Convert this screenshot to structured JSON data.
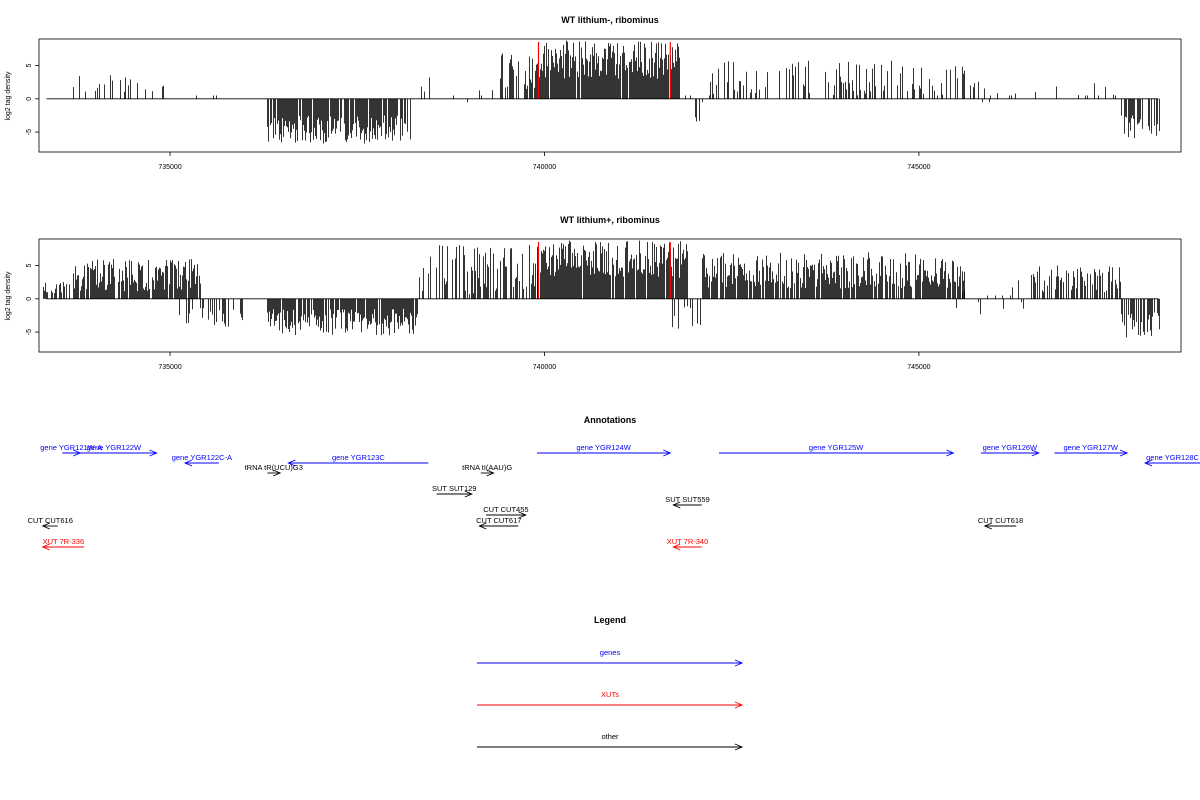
{
  "chart_data": [
    {
      "type": "bar",
      "title": "WT lithium-, ribominus",
      "ylabel": "log2 tag density",
      "xlim": [
        733250,
        748500
      ],
      "ylim": [
        -8,
        9
      ],
      "x_ticks": [
        735000,
        740000,
        745000
      ],
      "x_tick_labels": [
        "735000",
        "740000",
        "745000"
      ],
      "y_ticks": [
        -5,
        0,
        5
      ],
      "y_tick_labels": [
        "-5",
        "0",
        "5"
      ],
      "marker_lines": {
        "color": "#ff0000",
        "x": [
          739920,
          741680
        ]
      },
      "regions": [
        {
          "from": 733300,
          "to": 733700,
          "min": -1.8,
          "max": 1.4,
          "density": 0.04,
          "pos": 0.3
        },
        {
          "from": 733700,
          "to": 734900,
          "min": 0.8,
          "max": 3.8,
          "density": 0.25,
          "pos": 1.0
        },
        {
          "from": 734900,
          "to": 735750,
          "min": -4.0,
          "max": 3.2,
          "density": 0.06,
          "pos": 0.6
        },
        {
          "from": 736300,
          "to": 738200,
          "min": -6.8,
          "max": -2.5,
          "density": 0.85,
          "pos": 0.0
        },
        {
          "from": 738200,
          "to": 739400,
          "min": -1.2,
          "max": 4.0,
          "density": 0.1,
          "pos": 0.85
        },
        {
          "from": 739400,
          "to": 739900,
          "min": 1.5,
          "max": 7.2,
          "density": 0.5,
          "pos": 1.0
        },
        {
          "from": 739900,
          "to": 741800,
          "min": 3.0,
          "max": 8.8,
          "density": 0.95,
          "pos": 1.0
        },
        {
          "from": 741800,
          "to": 742200,
          "min": -3.5,
          "max": 1.5,
          "density": 0.1,
          "pos": 0.5
        },
        {
          "from": 742200,
          "to": 745600,
          "min": 0.5,
          "max": 5.8,
          "density": 0.35,
          "pos": 1.0
        },
        {
          "from": 745600,
          "to": 747700,
          "min": -1.0,
          "max": 2.8,
          "density": 0.12,
          "pos": 0.9
        },
        {
          "from": 747700,
          "to": 748200,
          "min": -6.0,
          "max": -2.5,
          "density": 0.6,
          "pos": 0.0
        }
      ]
    },
    {
      "type": "bar",
      "title": "WT lithium+, ribominus",
      "ylabel": "log2 tag density",
      "xlim": [
        733250,
        748500
      ],
      "ylim": [
        -8,
        9
      ],
      "x_ticks": [
        735000,
        740000,
        745000
      ],
      "x_tick_labels": [
        "735000",
        "740000",
        "745000"
      ],
      "y_ticks": [
        -5,
        0,
        5
      ],
      "y_tick_labels": [
        "-5",
        "0",
        "5"
      ],
      "marker_lines": {
        "color": "#ff0000",
        "x": [
          739920,
          741680
        ]
      },
      "regions": [
        {
          "from": 733300,
          "to": 733700,
          "min": 0.8,
          "max": 2.6,
          "density": 0.5,
          "pos": 1.0
        },
        {
          "from": 733700,
          "to": 735400,
          "min": 1.0,
          "max": 6.0,
          "density": 0.9,
          "pos": 1.0
        },
        {
          "from": 735100,
          "to": 736000,
          "min": -4.5,
          "max": -1.0,
          "density": 0.4,
          "pos": 0.0
        },
        {
          "from": 736300,
          "to": 738300,
          "min": -5.5,
          "max": -1.5,
          "density": 0.9,
          "pos": 0.0
        },
        {
          "from": 738300,
          "to": 739900,
          "min": 0.5,
          "max": 8.5,
          "density": 0.4,
          "pos": 0.95
        },
        {
          "from": 739900,
          "to": 741900,
          "min": 3.0,
          "max": 8.8,
          "density": 0.95,
          "pos": 1.0
        },
        {
          "from": 741700,
          "to": 742100,
          "min": -5.0,
          "max": -1.0,
          "density": 0.4,
          "pos": 0.0
        },
        {
          "from": 742100,
          "to": 745600,
          "min": 1.5,
          "max": 7.0,
          "density": 0.85,
          "pos": 1.0
        },
        {
          "from": 745500,
          "to": 746500,
          "min": -2.5,
          "max": 3.0,
          "density": 0.2,
          "pos": 0.6
        },
        {
          "from": 746500,
          "to": 747700,
          "min": 1.0,
          "max": 5.0,
          "density": 0.6,
          "pos": 1.0
        },
        {
          "from": 747700,
          "to": 748200,
          "min": -6.0,
          "max": -2.0,
          "density": 0.65,
          "pos": 0.0
        }
      ]
    }
  ],
  "annotations": {
    "title": "Annotations",
    "items": [
      {
        "label": "gene YGR121W-A",
        "color": "#0000ff",
        "from": 733560,
        "to": 733800,
        "row": 0
      },
      {
        "label": "gene YGR122W",
        "color": "#0000ff",
        "from": 733680,
        "to": 734820,
        "row": 0
      },
      {
        "label": "gene YGR122C-A",
        "color": "#0000ff",
        "from": 735650,
        "to": 735200,
        "row": 1
      },
      {
        "label": "gene YGR123C",
        "color": "#0000ff",
        "from": 738450,
        "to": 736580,
        "row": 1
      },
      {
        "label": "tRNA tR(UCU)G3",
        "color": "#000000",
        "from": 736300,
        "to": 736470,
        "row": 2
      },
      {
        "label": "tRNA tI(AAU)G",
        "color": "#000000",
        "from": 739150,
        "to": 739320,
        "row": 2
      },
      {
        "label": "gene YGR124W",
        "color": "#0000ff",
        "from": 739900,
        "to": 741680,
        "row": 0
      },
      {
        "label": "gene YGR125W",
        "color": "#0000ff",
        "from": 742330,
        "to": 745460,
        "row": 0
      },
      {
        "label": "gene YGR126W",
        "color": "#0000ff",
        "from": 745830,
        "to": 746600,
        "row": 0
      },
      {
        "label": "gene YGR127W",
        "color": "#0000ff",
        "from": 746810,
        "to": 747780,
        "row": 0
      },
      {
        "label": "gene YGR128C",
        "color": "#0000ff",
        "from": 749800,
        "to": 748020,
        "row": 1
      },
      {
        "label": "SUT SUT129",
        "color": "#000000",
        "from": 738560,
        "to": 739030,
        "row": 3
      },
      {
        "label": "SUT SUT559",
        "color": "#000000",
        "from": 742100,
        "to": 741720,
        "row": 4
      },
      {
        "label": "CUT CUT455",
        "color": "#000000",
        "from": 739220,
        "to": 739750,
        "row": 5
      },
      {
        "label": "CUT CUT617",
        "color": "#000000",
        "from": 739650,
        "to": 739130,
        "row": 6
      },
      {
        "label": "CUT CUT616",
        "color": "#000000",
        "from": 733500,
        "to": 733300,
        "row": 6
      },
      {
        "label": "CUT CUT618",
        "color": "#000000",
        "from": 746300,
        "to": 745880,
        "row": 6
      },
      {
        "label": "XUT 7R-336",
        "color": "#ff0000",
        "from": 733850,
        "to": 733300,
        "row": 7
      },
      {
        "label": "XUT 7R-340",
        "color": "#ff0000",
        "from": 742100,
        "to": 741720,
        "row": 7
      }
    ]
  },
  "legend": {
    "title": "Legend",
    "items": [
      {
        "label": "genes",
        "color": "#0000ff"
      },
      {
        "label": "XUTs",
        "color": "#ff0000"
      },
      {
        "label": "other",
        "color": "#000000"
      }
    ]
  }
}
